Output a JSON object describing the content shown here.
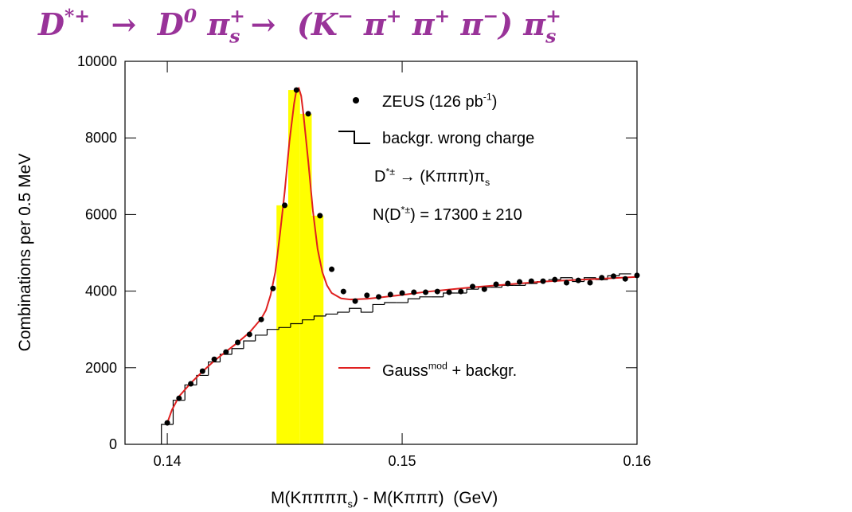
{
  "chart_data": {
    "type": "scatter",
    "title": [
      {
        "text": "D",
        "sup": "*+"
      },
      {
        "text": "  →  D",
        "sup": "0"
      },
      {
        "text": " π",
        "sup": "+",
        "sub": "s"
      },
      {
        "text": " →  (K",
        "sup": "−"
      },
      {
        "text": " π",
        "sup": "+"
      },
      {
        "text": " π",
        "sup": "+"
      },
      {
        "text": " π",
        "sup": "−"
      },
      {
        "text": ") π",
        "sup": "+",
        "sub": "s"
      }
    ],
    "x_label": [
      {
        "text": "M(Kππππ",
        "sub": "s"
      },
      {
        "text": ") - M(Kπππ)  (GeV)"
      }
    ],
    "y_label": "Combinations per 0.5 MeV",
    "xlim": [
      0.1382,
      0.16
    ],
    "ylim": [
      0,
      10000
    ],
    "xticks": [
      0.14,
      0.15,
      0.16
    ],
    "yticks": [
      0,
      2000,
      4000,
      6000,
      8000,
      10000
    ],
    "annotations": [
      [
        {
          "text": "D",
          "sup": "*±"
        },
        {
          "text": " → (Kπππ)π",
          "sub": "s"
        }
      ],
      [
        {
          "text": "N(D",
          "sup": "*±"
        },
        {
          "text": ") = 17300 ± 210"
        }
      ]
    ],
    "series": [
      {
        "name": [
          {
            "text": "ZEUS (126 pb",
            "sup": "-1"
          },
          {
            "text": ")"
          }
        ],
        "type": "scatter",
        "color": "#000000",
        "x": [
          0.14,
          0.1405,
          0.141,
          0.1415,
          0.142,
          0.1425,
          0.143,
          0.1435,
          0.144,
          0.1445,
          0.145,
          0.1455,
          0.146,
          0.1465,
          0.147,
          0.1475,
          0.148,
          0.1485,
          0.149,
          0.1495,
          0.15,
          0.1505,
          0.151,
          0.1515,
          0.152,
          0.1525,
          0.153,
          0.1535,
          0.154,
          0.1545,
          0.155,
          0.1555,
          0.156,
          0.1565,
          0.157,
          0.1575,
          0.158,
          0.1585,
          0.159,
          0.1595,
          0.16
        ],
        "values": [
          560,
          1200,
          1580,
          1910,
          2220,
          2410,
          2660,
          2870,
          3260,
          4070,
          6240,
          9250,
          8630,
          5970,
          4570,
          3990,
          3740,
          3890,
          3850,
          3910,
          3950,
          3970,
          3970,
          3990,
          3970,
          3990,
          4120,
          4050,
          4180,
          4200,
          4240,
          4260,
          4260,
          4300,
          4220,
          4280,
          4220,
          4350,
          4390,
          4320,
          4410
        ]
      },
      {
        "name": "backgr. wrong charge",
        "type": "step",
        "color": "#000000",
        "bins": [
          0.13975,
          0.14025,
          0.14075,
          0.14125,
          0.14175,
          0.14225,
          0.14275,
          0.14325,
          0.14375,
          0.14425,
          0.14475,
          0.14525,
          0.14575,
          0.14625,
          0.14675,
          0.14725,
          0.14775,
          0.14825,
          0.14875,
          0.14925,
          0.14975,
          0.15025,
          0.15075,
          0.15125,
          0.15175,
          0.15225,
          0.15275,
          0.15325,
          0.15375,
          0.15425,
          0.15475,
          0.15525,
          0.15575,
          0.15625,
          0.15675,
          0.15725,
          0.15775,
          0.15825,
          0.15875,
          0.15925,
          0.15975
        ],
        "values": [
          520,
          1150,
          1550,
          1800,
          2150,
          2350,
          2500,
          2700,
          2850,
          3000,
          3050,
          3150,
          3250,
          3350,
          3400,
          3450,
          3550,
          3450,
          3650,
          3700,
          3700,
          3800,
          3850,
          3850,
          3950,
          3950,
          4050,
          4100,
          4100,
          4150,
          4150,
          4200,
          4250,
          4300,
          4350,
          4250,
          4350,
          4300,
          4400,
          4450
        ]
      },
      {
        "type": "bar",
        "color": "#ffff00",
        "bins": [
          0.14465,
          0.14515,
          0.14565,
          0.14615,
          0.14665
        ],
        "values": [
          6240,
          9250,
          8630,
          5970
        ]
      },
      {
        "name": [
          {
            "text": "Gauss",
            "sup": "mod"
          },
          {
            "text": " + backgr."
          }
        ],
        "type": "line",
        "color": "#e02020",
        "x": [
          0.14,
          0.1402,
          0.1405,
          0.141,
          0.1415,
          0.142,
          0.1425,
          0.143,
          0.1435,
          0.144,
          0.1442,
          0.1444,
          0.1446,
          0.1448,
          0.145,
          0.1452,
          0.1454,
          0.1455,
          0.1456,
          0.1457,
          0.1458,
          0.146,
          0.1462,
          0.1464,
          0.1466,
          0.1468,
          0.147,
          0.1474,
          0.1478,
          0.1485,
          0.149,
          0.15,
          0.151,
          0.152,
          0.153,
          0.154,
          0.155,
          0.156,
          0.157,
          0.158,
          0.159,
          0.16
        ],
        "values": [
          560,
          900,
          1250,
          1600,
          1900,
          2180,
          2420,
          2660,
          2920,
          3280,
          3500,
          3900,
          4500,
          5500,
          6600,
          7900,
          8900,
          9250,
          9300,
          9100,
          8600,
          7400,
          6100,
          5100,
          4500,
          4150,
          3950,
          3810,
          3780,
          3800,
          3830,
          3900,
          3980,
          4040,
          4100,
          4150,
          4200,
          4250,
          4280,
          4310,
          4340,
          4370
        ]
      }
    ]
  }
}
